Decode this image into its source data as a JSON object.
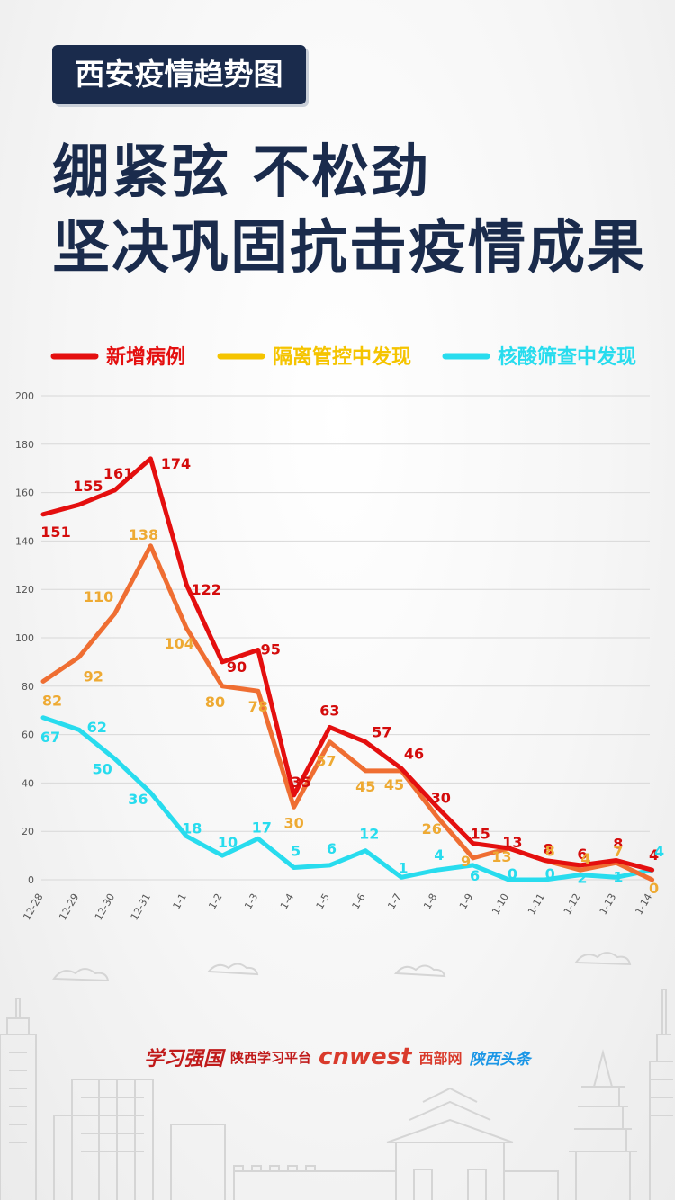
{
  "header": {
    "tag": "西安疫情趋势图",
    "headline_line1": "绷紧弦  不松劲",
    "headline_line2": "坚决巩固抗击疫情成果"
  },
  "colors": {
    "navy": "#1a2b4c",
    "new_cases": "#e40f0f",
    "quarantine_found": "#ef6e32",
    "quarantine_label": "#eeaa33",
    "screening_found": "#28dcee",
    "legend_quarantine": "#f5c400"
  },
  "chart_data": {
    "type": "line",
    "categories": [
      "12-28",
      "12-29",
      "12-30",
      "12-31",
      "1-1",
      "1-2",
      "1-3",
      "1-4",
      "1-5",
      "1-6",
      "1-7",
      "1-8",
      "1-9",
      "1-10",
      "1-11",
      "1-12",
      "1-13",
      "1-14"
    ],
    "ylim": [
      0,
      200
    ],
    "yticks": [
      0,
      20,
      40,
      60,
      80,
      100,
      120,
      140,
      160,
      180,
      200
    ],
    "grid": true,
    "legend_position": "top",
    "series": [
      {
        "name": "新增病例",
        "color": "#e40f0f",
        "label_color": "#d40c0c",
        "values": [
          151,
          155,
          161,
          174,
          122,
          90,
          95,
          35,
          63,
          57,
          46,
          30,
          15,
          13,
          8,
          6,
          8,
          4
        ],
        "labeled": [
          true,
          true,
          true,
          true,
          true,
          true,
          true,
          true,
          true,
          true,
          true,
          true,
          true,
          true,
          true,
          true,
          true,
          true
        ]
      },
      {
        "name": "隔离管控中发现",
        "color": "#ef6e32",
        "label_color": "#eeaa33",
        "values": [
          82,
          92,
          110,
          138,
          104,
          80,
          78,
          30,
          57,
          45,
          45,
          26,
          9,
          13,
          8,
          4,
          7,
          0
        ],
        "labeled": [
          true,
          true,
          true,
          true,
          true,
          true,
          true,
          true,
          true,
          true,
          true,
          true,
          true,
          true,
          true,
          true,
          true,
          true
        ]
      },
      {
        "name": "核酸筛查中发现",
        "color": "#28dcee",
        "label_color": "#28dcee",
        "values": [
          67,
          62,
          50,
          36,
          18,
          10,
          17,
          5,
          6,
          12,
          1,
          4,
          6,
          0,
          0,
          2,
          1,
          4
        ],
        "labeled": [
          true,
          true,
          true,
          true,
          true,
          true,
          true,
          true,
          true,
          true,
          true,
          true,
          true,
          true,
          true,
          true,
          true,
          true
        ]
      }
    ]
  },
  "footer": {
    "logos": [
      "学习强国",
      "陕西学习平台",
      "cnwest",
      "西部网",
      "陕西头条"
    ]
  }
}
